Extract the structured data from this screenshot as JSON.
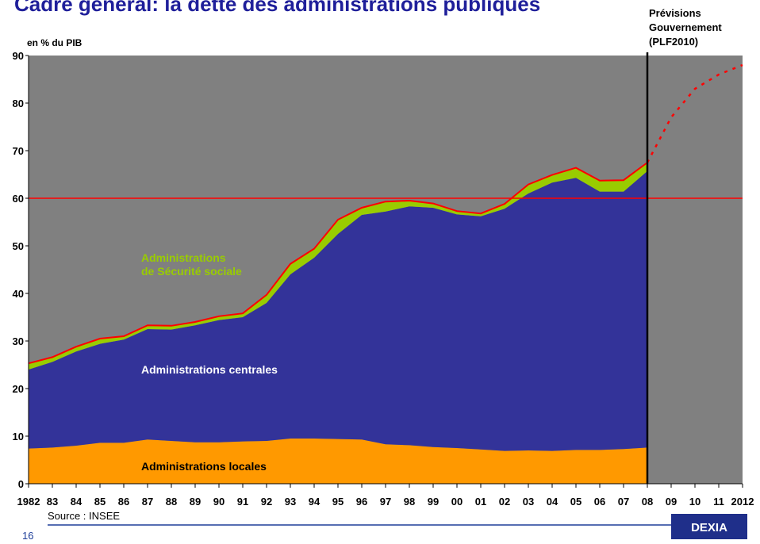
{
  "chart_data": {
    "type": "stacked_area",
    "title": "Cadre général: la dette des administrations publiques",
    "y_axis_label": "en % du PIB",
    "annotation": "Prévisions\nGouvernement\n(PLF2010)",
    "source": "Source : INSEE",
    "page_number": "16",
    "logo": "DEXIA",
    "categories": [
      "1982",
      "83",
      "84",
      "85",
      "86",
      "87",
      "88",
      "89",
      "90",
      "91",
      "92",
      "93",
      "94",
      "95",
      "96",
      "97",
      "98",
      "99",
      "00",
      "01",
      "02",
      "03",
      "04",
      "05",
      "06",
      "07",
      "08",
      "09",
      "10",
      "11",
      "2012"
    ],
    "series": [
      {
        "name": "Administrations locales",
        "color": "#ff9900",
        "label_color": "#000000",
        "values": [
          7.4,
          7.6,
          8.0,
          8.6,
          8.6,
          9.3,
          9.0,
          8.7,
          8.7,
          8.9,
          9.0,
          9.5,
          9.5,
          9.4,
          9.3,
          8.3,
          8.1,
          7.7,
          7.5,
          7.2,
          6.9,
          7.0,
          6.9,
          7.1,
          7.1,
          7.3,
          7.6,
          null,
          null,
          null,
          null
        ]
      },
      {
        "name": "Administrations centrales",
        "color": "#333399",
        "label_color": "#ffffff",
        "values": [
          16.6,
          18.0,
          19.8,
          20.8,
          21.7,
          23.2,
          23.4,
          24.6,
          25.7,
          26.1,
          29.0,
          34.5,
          38.0,
          43.1,
          47.2,
          48.9,
          50.2,
          50.3,
          49.1,
          49.0,
          50.9,
          54.0,
          56.4,
          57.2,
          54.3,
          54.1,
          58.1,
          null,
          null,
          null,
          null
        ]
      },
      {
        "name": "Administrations\nde Sécurité sociale",
        "color": "#99cc00",
        "label_color": "#99cc00",
        "values": [
          1.3,
          1.0,
          1.0,
          1.1,
          0.7,
          0.8,
          0.8,
          0.7,
          0.8,
          0.8,
          1.7,
          2.2,
          1.9,
          3.0,
          1.5,
          2.1,
          1.2,
          0.9,
          0.7,
          0.6,
          1.0,
          1.9,
          1.6,
          2.1,
          2.3,
          2.4,
          1.8,
          null,
          null,
          null,
          null
        ]
      }
    ],
    "forecast_values": [
      null,
      null,
      null,
      null,
      null,
      null,
      null,
      null,
      null,
      null,
      null,
      null,
      null,
      null,
      null,
      null,
      null,
      null,
      null,
      null,
      null,
      null,
      null,
      null,
      null,
      null,
      67.5,
      77,
      83,
      86,
      88
    ],
    "line_color": "#ff0000",
    "reference_line": 60,
    "ylim": [
      0,
      90
    ],
    "yticks": [
      0,
      10,
      20,
      30,
      40,
      50,
      60,
      70,
      80,
      90
    ],
    "plot_background": "#808080"
  }
}
